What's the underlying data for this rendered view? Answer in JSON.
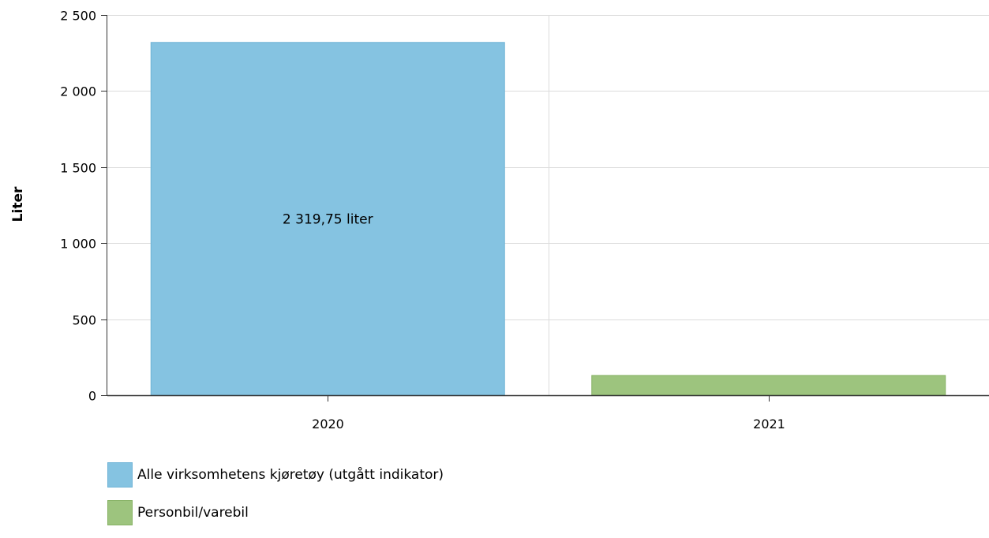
{
  "chart_data": {
    "type": "bar",
    "title": "",
    "xlabel": "",
    "ylabel": "Liter",
    "ylim": [
      0,
      2500
    ],
    "yticks": [
      0,
      500,
      1000,
      1500,
      2000,
      2500
    ],
    "ytick_labels": [
      "0",
      "500",
      "1 000",
      "1 500",
      "2 000",
      "2 500"
    ],
    "categories": [
      "2020",
      "2021"
    ],
    "grid": true,
    "legend_position": "bottom-left",
    "series": [
      {
        "name": "Alle virksomhetens kjøretøy (utgått indikator)",
        "category": "2020",
        "value": 2319.75,
        "data_label": "2 319,75 liter",
        "color": "#85c3e1",
        "border_color": "#6fb3d6"
      },
      {
        "name": "Personbil/varebil",
        "category": "2021",
        "value": 130,
        "data_label": "",
        "color": "#9dc47e",
        "border_color": "#86b163"
      }
    ]
  }
}
